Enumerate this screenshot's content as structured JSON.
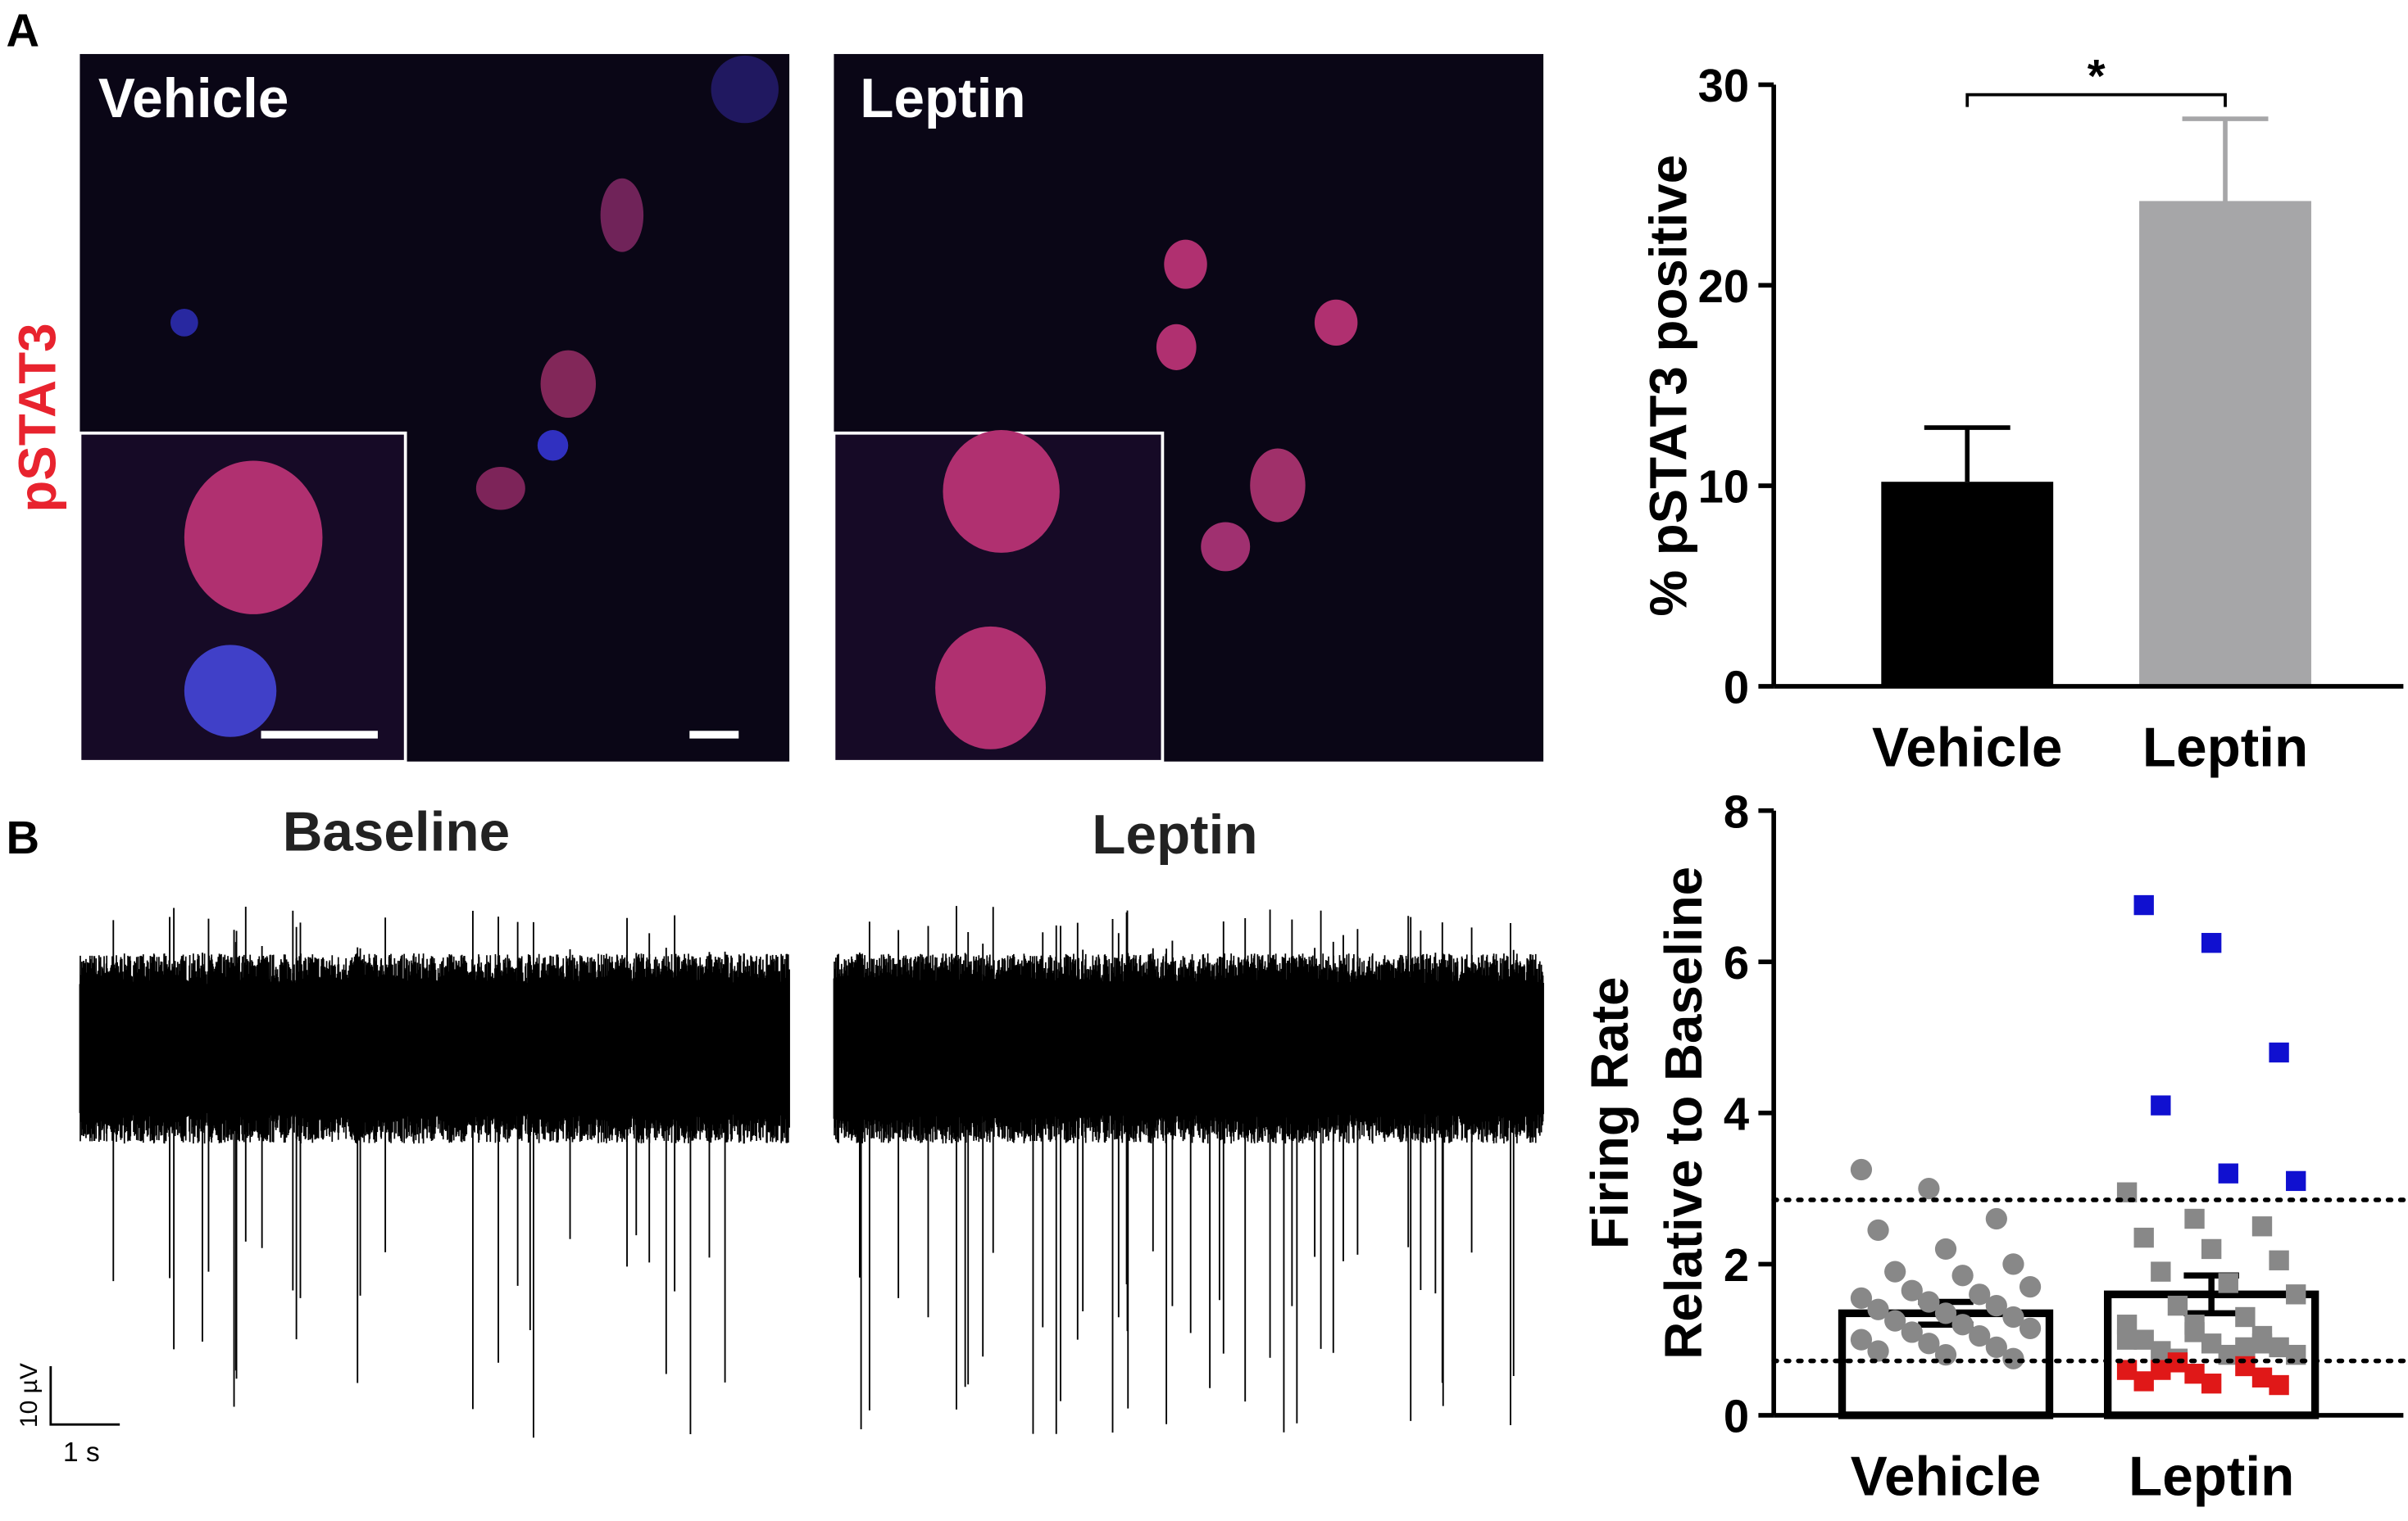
{
  "panel_labels": [
    "A",
    "B"
  ],
  "micrographs": {
    "stain": "pSTAT3",
    "titles": [
      "Vehicle",
      "Leptin"
    ]
  },
  "recordings": {
    "titles": [
      "Baseline",
      "Leptin"
    ],
    "scale_y": "10 µV",
    "scale_x": "1 s"
  },
  "chart_data": [
    {
      "type": "bar",
      "ylabel": "% pSTAT3 positive",
      "categories": [
        "Vehicle",
        "Leptin"
      ],
      "values": [
        10.2,
        24.2
      ],
      "errors": [
        2.7,
        4.1
      ],
      "colors": [
        "#000000",
        "#a6a6a8"
      ],
      "ylim": [
        0,
        30
      ],
      "yticks": [
        0,
        10,
        20,
        30
      ],
      "significance": {
        "label": "*",
        "y": 29.5
      }
    },
    {
      "type": "bar",
      "ylabel": [
        "Firing Rate",
        "Relative to Baseline"
      ],
      "categories": [
        "Vehicle",
        "Leptin"
      ],
      "values": [
        1.35,
        1.6
      ],
      "errors": [
        0.15,
        0.25
      ],
      "colors": [
        "#ffffff",
        "#ffffff"
      ],
      "ylim": [
        0,
        8
      ],
      "yticks": [
        0,
        2,
        4,
        6,
        8
      ],
      "reference_lines": [
        2.85,
        0.72
      ],
      "groups": [
        {
          "points": [
            {
              "color": "#888888",
              "marker": "circle",
              "values": [
                3.25,
                3.0,
                2.6,
                2.45,
                2.2,
                2.0,
                1.9,
                1.85,
                1.7,
                1.65,
                1.6,
                1.55,
                1.5,
                1.45,
                1.4,
                1.35,
                1.3,
                1.25,
                1.2,
                1.15,
                1.1,
                1.05,
                1.0,
                0.95,
                0.9,
                0.85,
                0.8,
                0.75
              ]
            }
          ]
        },
        {
          "points": [
            {
              "color": "#888888",
              "marker": "square",
              "values": [
                2.95,
                2.6,
                2.5,
                2.35,
                2.2,
                2.05,
                1.9,
                1.75,
                1.6,
                1.45,
                1.3,
                1.2,
                1.1,
                1.05,
                1.0,
                0.95,
                0.9,
                0.85,
                0.8,
                0.8,
                0.75,
                0.9,
                1.0,
                1.2,
                0.95
              ]
            },
            {
              "color": "#1010d0",
              "marker": "square",
              "values": [
                6.75,
                6.25,
                4.8,
                4.1,
                3.2,
                3.1
              ]
            },
            {
              "color": "#e01818",
              "marker": "square",
              "values": [
                0.7,
                0.65,
                0.6,
                0.55,
                0.5,
                0.45,
                0.42,
                0.4,
                0.6
              ]
            }
          ]
        }
      ]
    }
  ]
}
